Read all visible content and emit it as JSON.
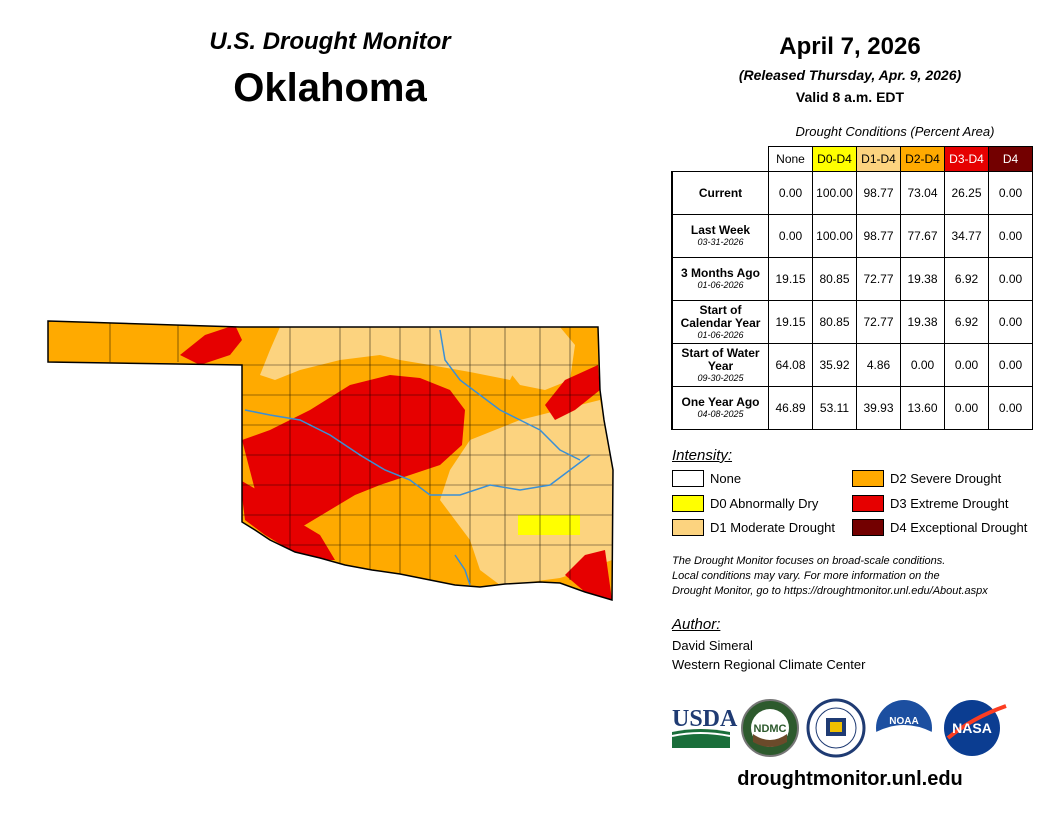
{
  "header": {
    "product": "U.S. Drought Monitor",
    "state": "Oklahoma",
    "date": "April 7, 2026",
    "released": "(Released Thursday, Apr. 9, 2026)",
    "valid": "Valid 8 a.m. EDT"
  },
  "conditions": {
    "title": "Drought Conditions (Percent Area)",
    "columns": [
      {
        "label": "None",
        "bg": "#ffffff",
        "fg": "#000000"
      },
      {
        "label": "D0-D4",
        "bg": "#ffff00",
        "fg": "#000000"
      },
      {
        "label": "D1-D4",
        "bg": "#fcd37f",
        "fg": "#000000"
      },
      {
        "label": "D2-D4",
        "bg": "#ffaa00",
        "fg": "#000000"
      },
      {
        "label": "D3-D4",
        "bg": "#e60000",
        "fg": "#ffffff"
      },
      {
        "label": "D4",
        "bg": "#730000",
        "fg": "#ffffff"
      }
    ],
    "rows": [
      {
        "label": "Current",
        "date": "",
        "values": [
          "0.00",
          "100.00",
          "98.77",
          "73.04",
          "26.25",
          "0.00"
        ]
      },
      {
        "label": "Last Week",
        "date": "03-31-2026",
        "values": [
          "0.00",
          "100.00",
          "98.77",
          "77.67",
          "34.77",
          "0.00"
        ]
      },
      {
        "label": "3 Months Ago",
        "date": "01-06-2026",
        "values": [
          "19.15",
          "80.85",
          "72.77",
          "19.38",
          "6.92",
          "0.00"
        ]
      },
      {
        "label": "Start of Calendar Year",
        "date": "01-06-2026",
        "values": [
          "19.15",
          "80.85",
          "72.77",
          "19.38",
          "6.92",
          "0.00"
        ]
      },
      {
        "label": "Start of Water Year",
        "date": "09-30-2025",
        "values": [
          "64.08",
          "35.92",
          "4.86",
          "0.00",
          "0.00",
          "0.00"
        ]
      },
      {
        "label": "One Year Ago",
        "date": "04-08-2025",
        "values": [
          "46.89",
          "53.11",
          "39.93",
          "13.60",
          "0.00",
          "0.00"
        ]
      }
    ]
  },
  "legend": {
    "title": "Intensity:",
    "items": [
      {
        "label": "None",
        "color": "#ffffff"
      },
      {
        "label": "D0 Abnormally Dry",
        "color": "#ffff00"
      },
      {
        "label": "D1 Moderate Drought",
        "color": "#fcd37f"
      },
      {
        "label": "D2 Severe Drought",
        "color": "#ffaa00"
      },
      {
        "label": "D3 Extreme Drought",
        "color": "#e60000"
      },
      {
        "label": "D4 Exceptional Drought",
        "color": "#730000"
      }
    ]
  },
  "note": {
    "line1": "The Drought Monitor focuses on broad-scale conditions.",
    "line2": "Local conditions may vary. For more information on the",
    "line3": "Drought Monitor, go to https://droughtmonitor.unl.edu/About.aspx"
  },
  "author": {
    "heading": "Author:",
    "name": "David Simeral",
    "org": "Western Regional Climate Center"
  },
  "logos": {
    "usda": "USDA",
    "ndmc": "NDMC",
    "noaa": "NOAA",
    "nasa": "NASA"
  },
  "website": "droughtmonitor.unl.edu",
  "colors": {
    "none": "#ffffff",
    "d0": "#ffff00",
    "d1": "#fcd37f",
    "d2": "#ffaa00",
    "d3": "#e60000",
    "d4": "#730000",
    "river": "#3a8fd6"
  }
}
